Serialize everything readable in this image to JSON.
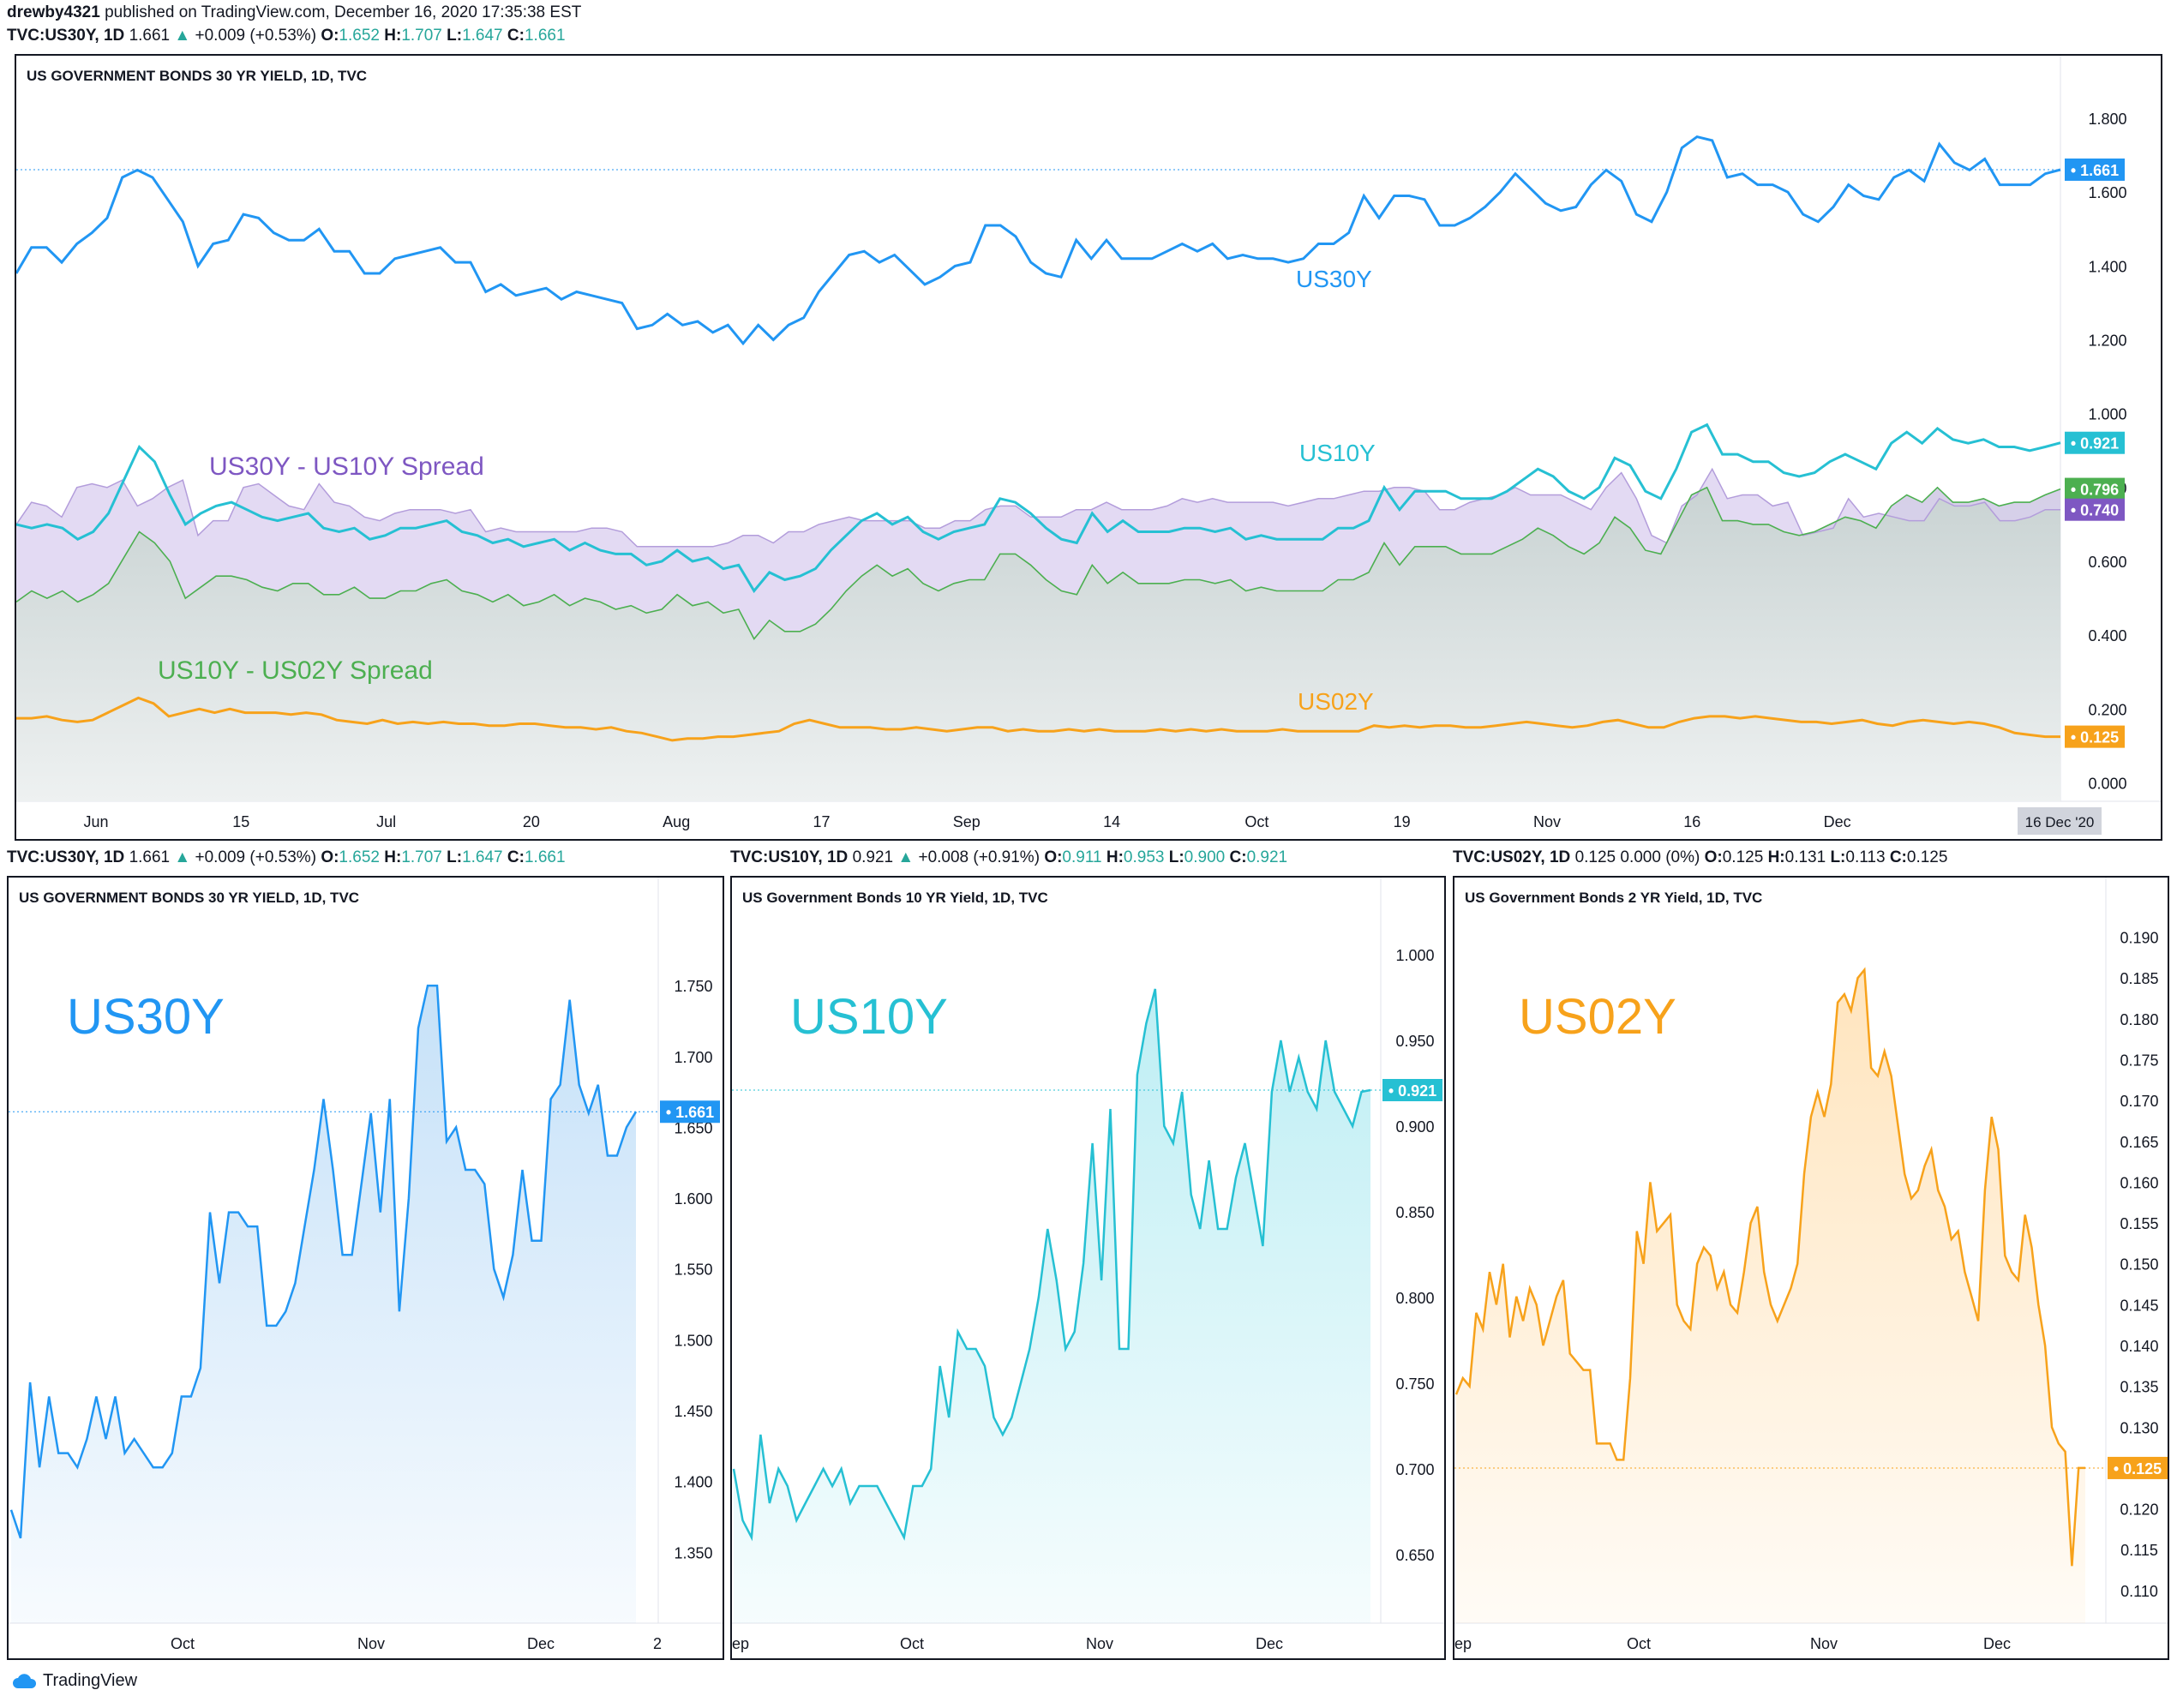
{
  "publish_line": {
    "user": "drewby4321",
    "text": " published on TradingView.com, December 16, 2020 17:35:38 EST"
  },
  "top_header": {
    "symbol": "TVC:US30Y, 1D",
    "last": "1.661",
    "change": "+0.009 (+0.53%)",
    "o": "1.652",
    "h": "1.707",
    "l": "1.647",
    "c": "1.661"
  },
  "headers": [
    {
      "symbol": "TVC:US30Y, 1D",
      "last": "1.661",
      "change": "+0.009 (+0.53%)",
      "o": "1.652",
      "h": "1.707",
      "l": "1.647",
      "c": "1.661",
      "arrow": "▲"
    },
    {
      "symbol": "TVC:US10Y, 1D",
      "last": "0.921",
      "change": "+0.008 (+0.91%)",
      "o": "0.911",
      "h": "0.953",
      "l": "0.900",
      "c": "0.921",
      "arrow": "▲"
    },
    {
      "symbol": "TVC:US02Y, 1D",
      "last": "0.125",
      "change": "0.000 (0%)",
      "o": "0.125",
      "h": "0.131",
      "l": "0.113",
      "c": "0.125",
      "arrow": ""
    }
  ],
  "labels": {
    "o": "O:",
    "h": "H:",
    "l": "L:",
    "c": "C:",
    "arrow_up": "▲"
  },
  "brand": "TradingView",
  "colors": {
    "us30y": "#2196f3",
    "us10y": "#26c0d3",
    "us02y": "#f7a21b",
    "spread30_10": "#7e57c2",
    "spread10_02": "#4caf50",
    "up": "#26a69a"
  },
  "chart_data": [
    {
      "type": "line",
      "title": "US GOVERNMENT BONDS 30 YR YIELD, 1D, TVC",
      "x_ticks": [
        "Jun",
        "15",
        "Jul",
        "20",
        "Aug",
        "17",
        "Sep",
        "14",
        "Oct",
        "19",
        "Nov",
        "16",
        "Dec"
      ],
      "x_range_label": "16 Dec '20",
      "ylim": [
        -0.05,
        1.9
      ],
      "y_ticks": [
        "1.800",
        "1.600",
        "1.400",
        "1.200",
        "1.000",
        "0.800",
        "0.600",
        "0.400",
        "0.200",
        "0.000"
      ],
      "series": [
        {
          "name": "US30Y",
          "last": "1.661",
          "values": [
            1.38,
            1.45,
            1.45,
            1.41,
            1.46,
            1.49,
            1.53,
            1.64,
            1.66,
            1.64,
            1.58,
            1.52,
            1.4,
            1.46,
            1.47,
            1.54,
            1.53,
            1.49,
            1.47,
            1.47,
            1.5,
            1.44,
            1.44,
            1.38,
            1.38,
            1.42,
            1.43,
            1.44,
            1.45,
            1.41,
            1.41,
            1.33,
            1.35,
            1.32,
            1.33,
            1.34,
            1.31,
            1.33,
            1.32,
            1.31,
            1.3,
            1.23,
            1.24,
            1.27,
            1.24,
            1.25,
            1.22,
            1.24,
            1.19,
            1.24,
            1.2,
            1.24,
            1.26,
            1.33,
            1.38,
            1.43,
            1.44,
            1.41,
            1.43,
            1.39,
            1.35,
            1.37,
            1.4,
            1.41,
            1.51,
            1.51,
            1.48,
            1.41,
            1.38,
            1.37,
            1.47,
            1.42,
            1.47,
            1.42,
            1.42,
            1.42,
            1.44,
            1.46,
            1.44,
            1.46,
            1.42,
            1.43,
            1.42,
            1.42,
            1.41,
            1.42,
            1.46,
            1.46,
            1.49,
            1.59,
            1.53,
            1.59,
            1.59,
            1.58,
            1.51,
            1.51,
            1.53,
            1.56,
            1.6,
            1.65,
            1.61,
            1.57,
            1.55,
            1.56,
            1.62,
            1.66,
            1.63,
            1.54,
            1.52,
            1.6,
            1.72,
            1.75,
            1.74,
            1.64,
            1.65,
            1.62,
            1.62,
            1.6,
            1.54,
            1.52,
            1.56,
            1.62,
            1.59,
            1.58,
            1.64,
            1.66,
            1.63,
            1.73,
            1.68,
            1.66,
            1.69,
            1.62,
            1.62,
            1.62,
            1.65,
            1.661
          ]
        },
        {
          "name": "US10Y",
          "last": "0.921",
          "values": [
            0.7,
            0.69,
            0.7,
            0.69,
            0.66,
            0.68,
            0.73,
            0.82,
            0.91,
            0.87,
            0.78,
            0.7,
            0.73,
            0.75,
            0.76,
            0.74,
            0.72,
            0.71,
            0.72,
            0.73,
            0.69,
            0.68,
            0.69,
            0.66,
            0.67,
            0.69,
            0.69,
            0.7,
            0.71,
            0.68,
            0.67,
            0.65,
            0.66,
            0.64,
            0.65,
            0.66,
            0.63,
            0.65,
            0.63,
            0.62,
            0.62,
            0.59,
            0.6,
            0.63,
            0.6,
            0.61,
            0.58,
            0.59,
            0.52,
            0.57,
            0.55,
            0.56,
            0.58,
            0.63,
            0.67,
            0.71,
            0.73,
            0.7,
            0.72,
            0.68,
            0.66,
            0.68,
            0.69,
            0.7,
            0.77,
            0.76,
            0.73,
            0.69,
            0.66,
            0.65,
            0.73,
            0.68,
            0.71,
            0.68,
            0.68,
            0.68,
            0.69,
            0.69,
            0.68,
            0.69,
            0.66,
            0.67,
            0.66,
            0.66,
            0.66,
            0.66,
            0.69,
            0.69,
            0.71,
            0.8,
            0.74,
            0.79,
            0.79,
            0.79,
            0.77,
            0.77,
            0.77,
            0.79,
            0.82,
            0.85,
            0.83,
            0.79,
            0.77,
            0.8,
            0.88,
            0.86,
            0.79,
            0.77,
            0.85,
            0.95,
            0.97,
            0.89,
            0.89,
            0.87,
            0.87,
            0.84,
            0.83,
            0.84,
            0.87,
            0.89,
            0.87,
            0.85,
            0.92,
            0.95,
            0.92,
            0.96,
            0.93,
            0.92,
            0.93,
            0.91,
            0.91,
            0.9,
            0.91,
            0.921
          ]
        },
        {
          "name": "US02Y",
          "last": "0.125",
          "values": [
            0.175,
            0.175,
            0.18,
            0.17,
            0.165,
            0.17,
            0.19,
            0.21,
            0.23,
            0.215,
            0.18,
            0.19,
            0.2,
            0.19,
            0.2,
            0.19,
            0.19,
            0.19,
            0.185,
            0.19,
            0.185,
            0.17,
            0.165,
            0.16,
            0.17,
            0.16,
            0.165,
            0.16,
            0.165,
            0.16,
            0.16,
            0.155,
            0.155,
            0.16,
            0.16,
            0.155,
            0.15,
            0.15,
            0.145,
            0.15,
            0.14,
            0.135,
            0.125,
            0.115,
            0.12,
            0.12,
            0.125,
            0.125,
            0.13,
            0.135,
            0.14,
            0.16,
            0.17,
            0.16,
            0.15,
            0.15,
            0.15,
            0.145,
            0.145,
            0.15,
            0.145,
            0.14,
            0.145,
            0.15,
            0.15,
            0.14,
            0.145,
            0.14,
            0.14,
            0.145,
            0.14,
            0.145,
            0.14,
            0.14,
            0.14,
            0.145,
            0.14,
            0.145,
            0.14,
            0.145,
            0.14,
            0.14,
            0.14,
            0.145,
            0.14,
            0.14,
            0.14,
            0.14,
            0.14,
            0.155,
            0.15,
            0.155,
            0.15,
            0.155,
            0.155,
            0.15,
            0.15,
            0.155,
            0.16,
            0.165,
            0.16,
            0.155,
            0.15,
            0.155,
            0.165,
            0.17,
            0.16,
            0.15,
            0.15,
            0.165,
            0.175,
            0.18,
            0.18,
            0.175,
            0.18,
            0.175,
            0.17,
            0.165,
            0.165,
            0.16,
            0.165,
            0.17,
            0.16,
            0.155,
            0.165,
            0.17,
            0.165,
            0.16,
            0.165,
            0.16,
            0.15,
            0.135,
            0.13,
            0.125,
            0.125
          ]
        },
        {
          "name": "US30Y - US10Y Spread",
          "last": "0.740",
          "values": [
            0.7,
            0.76,
            0.75,
            0.72,
            0.8,
            0.81,
            0.8,
            0.82,
            0.75,
            0.77,
            0.8,
            0.82,
            0.67,
            0.71,
            0.71,
            0.8,
            0.81,
            0.78,
            0.75,
            0.74,
            0.81,
            0.76,
            0.75,
            0.72,
            0.71,
            0.73,
            0.74,
            0.74,
            0.74,
            0.73,
            0.74,
            0.68,
            0.69,
            0.68,
            0.68,
            0.68,
            0.68,
            0.68,
            0.69,
            0.69,
            0.68,
            0.64,
            0.64,
            0.64,
            0.64,
            0.64,
            0.64,
            0.65,
            0.67,
            0.67,
            0.65,
            0.68,
            0.68,
            0.7,
            0.71,
            0.72,
            0.71,
            0.71,
            0.71,
            0.71,
            0.69,
            0.69,
            0.71,
            0.71,
            0.74,
            0.75,
            0.75,
            0.72,
            0.72,
            0.72,
            0.74,
            0.74,
            0.76,
            0.74,
            0.74,
            0.74,
            0.75,
            0.77,
            0.76,
            0.77,
            0.76,
            0.76,
            0.76,
            0.76,
            0.75,
            0.76,
            0.77,
            0.77,
            0.78,
            0.79,
            0.79,
            0.8,
            0.8,
            0.79,
            0.74,
            0.74,
            0.76,
            0.77,
            0.78,
            0.8,
            0.78,
            0.78,
            0.78,
            0.76,
            0.74,
            0.8,
            0.84,
            0.77,
            0.67,
            0.65,
            0.75,
            0.78,
            0.85,
            0.77,
            0.78,
            0.78,
            0.75,
            0.76,
            0.67,
            0.68,
            0.69,
            0.77,
            0.72,
            0.73,
            0.72,
            0.71,
            0.71,
            0.77,
            0.75,
            0.75,
            0.76,
            0.71,
            0.71,
            0.72,
            0.74,
            0.74
          ]
        },
        {
          "name": "US10Y - US02Y Spread",
          "last": "0.796",
          "values": [
            0.49,
            0.52,
            0.5,
            0.52,
            0.49,
            0.51,
            0.54,
            0.61,
            0.68,
            0.65,
            0.6,
            0.5,
            0.53,
            0.56,
            0.56,
            0.55,
            0.53,
            0.52,
            0.54,
            0.54,
            0.51,
            0.51,
            0.53,
            0.5,
            0.5,
            0.52,
            0.52,
            0.54,
            0.55,
            0.52,
            0.51,
            0.49,
            0.51,
            0.48,
            0.49,
            0.51,
            0.48,
            0.5,
            0.49,
            0.47,
            0.48,
            0.46,
            0.47,
            0.51,
            0.48,
            0.49,
            0.46,
            0.47,
            0.39,
            0.44,
            0.41,
            0.41,
            0.43,
            0.47,
            0.52,
            0.56,
            0.59,
            0.56,
            0.58,
            0.54,
            0.52,
            0.54,
            0.55,
            0.55,
            0.62,
            0.62,
            0.59,
            0.55,
            0.52,
            0.51,
            0.59,
            0.54,
            0.57,
            0.54,
            0.54,
            0.54,
            0.55,
            0.55,
            0.54,
            0.55,
            0.52,
            0.53,
            0.52,
            0.52,
            0.52,
            0.52,
            0.55,
            0.55,
            0.57,
            0.65,
            0.59,
            0.64,
            0.64,
            0.64,
            0.62,
            0.62,
            0.62,
            0.64,
            0.66,
            0.69,
            0.67,
            0.64,
            0.62,
            0.65,
            0.72,
            0.69,
            0.63,
            0.62,
            0.7,
            0.78,
            0.8,
            0.71,
            0.71,
            0.7,
            0.7,
            0.68,
            0.67,
            0.68,
            0.7,
            0.72,
            0.71,
            0.69,
            0.75,
            0.78,
            0.76,
            0.8,
            0.76,
            0.76,
            0.77,
            0.75,
            0.76,
            0.76,
            0.78,
            0.796
          ]
        }
      ],
      "annotations": [
        "US30Y",
        "US10Y",
        "US02Y",
        "US30Y - US10Y Spread",
        "US10Y - US02Y Spread"
      ]
    },
    {
      "type": "area",
      "title": "US GOVERNMENT BONDS 30 YR YIELD, 1D, TVC",
      "watermark": "US30Y",
      "x_ticks": [
        "Oct",
        "Nov",
        "Dec",
        "2"
      ],
      "ylim": [
        1.3,
        1.79
      ],
      "y_ticks": [
        "1.750",
        "1.700",
        "1.650",
        "1.600",
        "1.550",
        "1.500",
        "1.450",
        "1.400",
        "1.350"
      ],
      "last": "1.661",
      "values": [
        1.38,
        1.36,
        1.47,
        1.41,
        1.46,
        1.42,
        1.42,
        1.41,
        1.43,
        1.46,
        1.43,
        1.46,
        1.42,
        1.43,
        1.42,
        1.41,
        1.41,
        1.42,
        1.46,
        1.46,
        1.48,
        1.59,
        1.54,
        1.59,
        1.59,
        1.58,
        1.58,
        1.51,
        1.51,
        1.52,
        1.54,
        1.58,
        1.62,
        1.67,
        1.62,
        1.56,
        1.56,
        1.61,
        1.66,
        1.59,
        1.67,
        1.52,
        1.6,
        1.72,
        1.75,
        1.75,
        1.64,
        1.65,
        1.62,
        1.62,
        1.61,
        1.55,
        1.53,
        1.56,
        1.62,
        1.57,
        1.57,
        1.67,
        1.68,
        1.74,
        1.68,
        1.66,
        1.68,
        1.63,
        1.63,
        1.65,
        1.661
      ]
    },
    {
      "type": "area",
      "title": "US Government Bonds 10 YR Yield, 1D, TVC",
      "watermark": "US10Y",
      "x_ticks": [
        "ep",
        "Oct",
        "Nov",
        "Dec"
      ],
      "ylim": [
        0.61,
        1.015
      ],
      "y_ticks": [
        "1.000",
        "0.950",
        "0.900",
        "0.850",
        "0.800",
        "0.750",
        "0.700",
        "0.650"
      ],
      "last": "0.921",
      "values": [
        0.7,
        0.67,
        0.66,
        0.72,
        0.68,
        0.7,
        0.69,
        0.67,
        0.68,
        0.69,
        0.7,
        0.69,
        0.7,
        0.68,
        0.69,
        0.69,
        0.69,
        0.68,
        0.67,
        0.66,
        0.69,
        0.69,
        0.7,
        0.76,
        0.73,
        0.78,
        0.77,
        0.77,
        0.76,
        0.73,
        0.72,
        0.73,
        0.75,
        0.77,
        0.8,
        0.84,
        0.81,
        0.77,
        0.78,
        0.82,
        0.89,
        0.81,
        0.91,
        0.77,
        0.77,
        0.93,
        0.96,
        0.98,
        0.9,
        0.89,
        0.92,
        0.86,
        0.84,
        0.88,
        0.84,
        0.84,
        0.87,
        0.89,
        0.86,
        0.83,
        0.92,
        0.95,
        0.92,
        0.94,
        0.92,
        0.91,
        0.95,
        0.92,
        0.91,
        0.9,
        0.92,
        0.921
      ]
    },
    {
      "type": "area",
      "title": "US Government Bonds 2 YR Yield, 1D, TVC",
      "watermark": "US02Y",
      "x_ticks": [
        "ep",
        "Oct",
        "Nov",
        "Dec"
      ],
      "ylim": [
        0.106,
        0.191
      ],
      "y_ticks": [
        "0.190",
        "0.185",
        "0.180",
        "0.175",
        "0.170",
        "0.165",
        "0.160",
        "0.155",
        "0.150",
        "0.145",
        "0.140",
        "0.135",
        "0.130",
        "0.125",
        "0.120",
        "0.115",
        "0.110"
      ],
      "last": "0.125",
      "values": [
        0.134,
        0.136,
        0.135,
        0.144,
        0.142,
        0.149,
        0.145,
        0.15,
        0.141,
        0.146,
        0.143,
        0.147,
        0.145,
        0.14,
        0.143,
        0.146,
        0.148,
        0.139,
        0.138,
        0.137,
        0.137,
        0.128,
        0.128,
        0.128,
        0.126,
        0.126,
        0.136,
        0.154,
        0.15,
        0.16,
        0.154,
        0.155,
        0.156,
        0.145,
        0.143,
        0.142,
        0.15,
        0.152,
        0.151,
        0.147,
        0.149,
        0.145,
        0.144,
        0.149,
        0.155,
        0.157,
        0.149,
        0.145,
        0.143,
        0.145,
        0.147,
        0.15,
        0.161,
        0.168,
        0.171,
        0.168,
        0.172,
        0.182,
        0.183,
        0.181,
        0.185,
        0.186,
        0.174,
        0.173,
        0.176,
        0.173,
        0.167,
        0.161,
        0.158,
        0.159,
        0.162,
        0.164,
        0.159,
        0.157,
        0.153,
        0.154,
        0.149,
        0.146,
        0.143,
        0.159,
        0.168,
        0.164,
        0.151,
        0.149,
        0.148,
        0.156,
        0.152,
        0.145,
        0.14,
        0.13,
        0.128,
        0.127,
        0.113,
        0.125,
        0.125
      ]
    }
  ]
}
